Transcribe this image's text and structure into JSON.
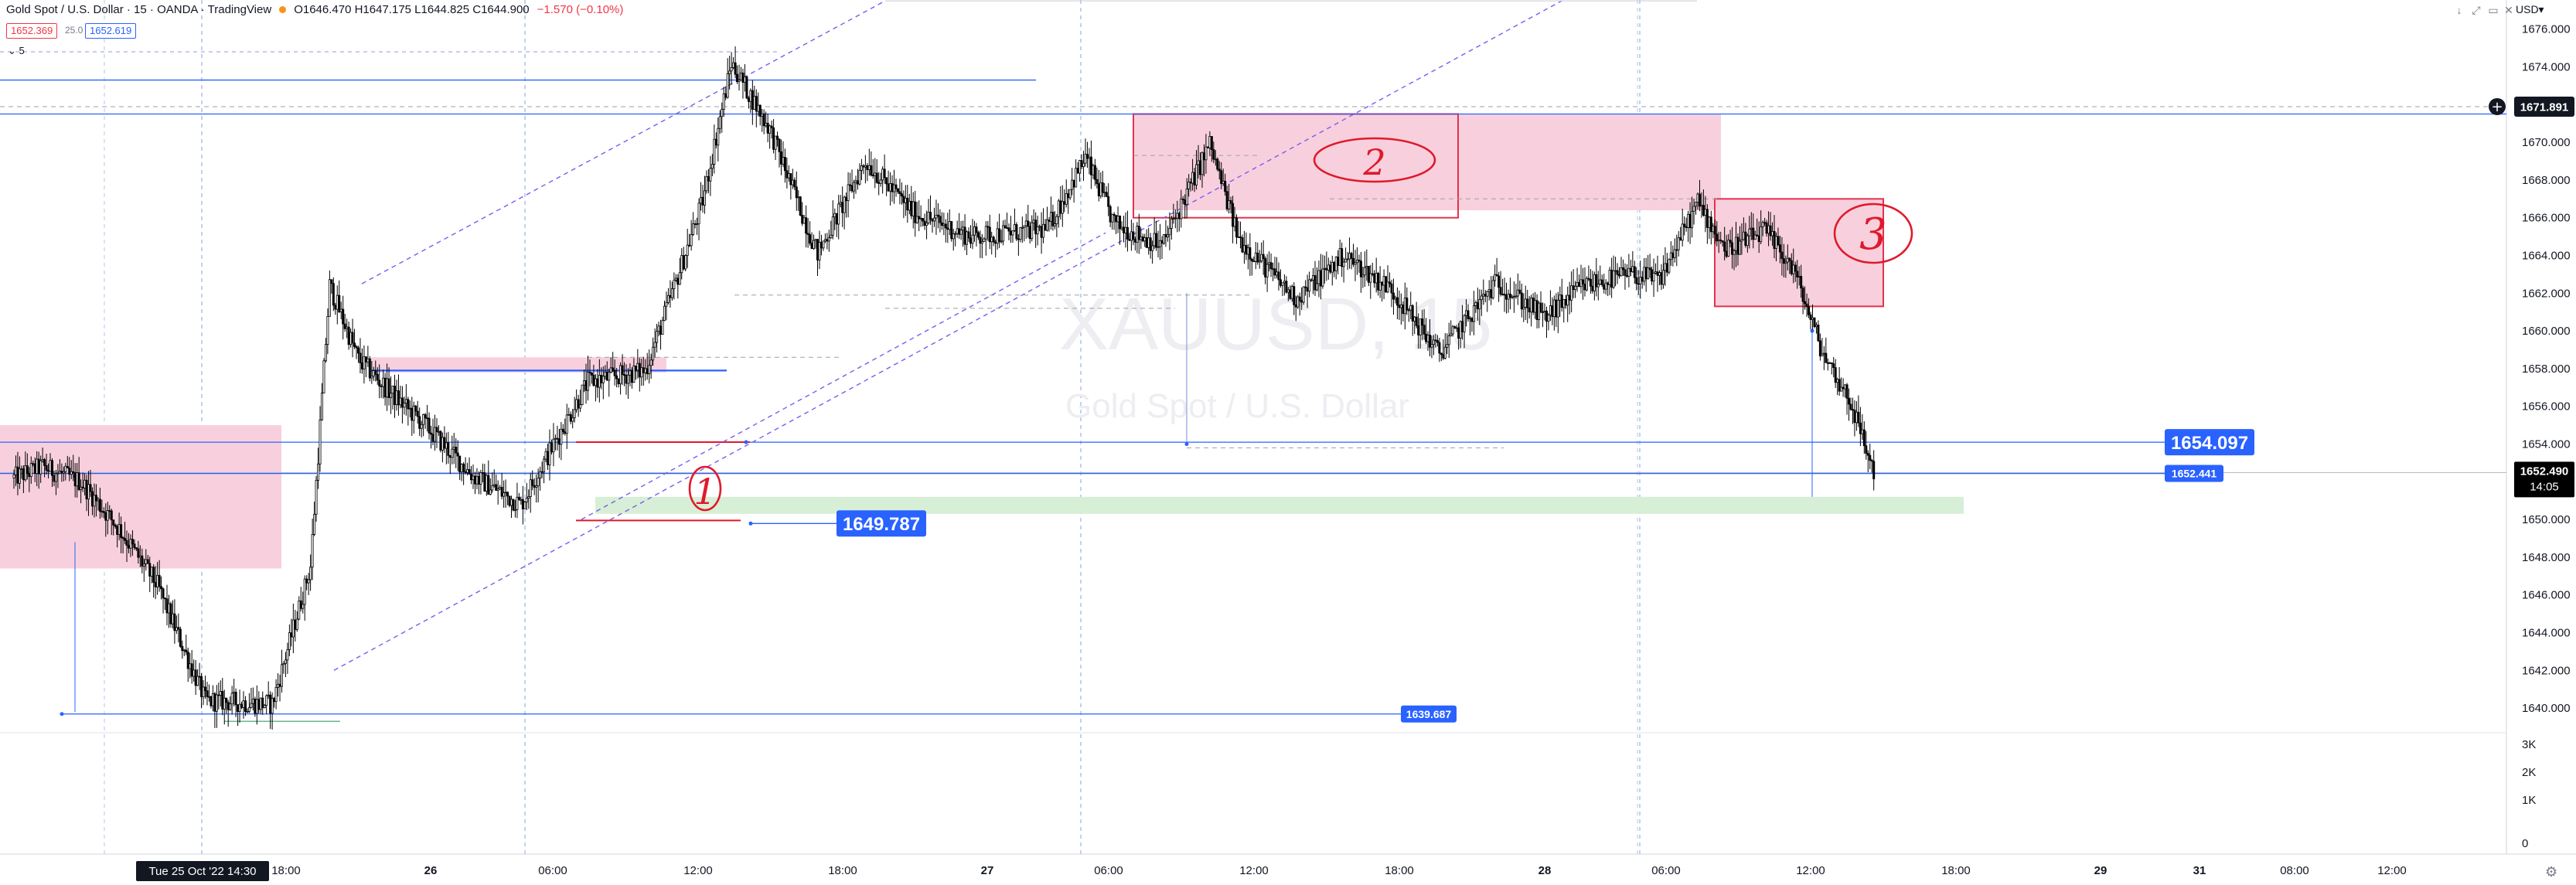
{
  "header": {
    "symbol": "Gold Spot / U.S. Dollar · 15 · OANDA · TradingView",
    "ohlc": "O1646.470 H1647.175 L1644.825 C1644.900",
    "change": "−1.570 (−0.10%)",
    "bid": "1652.369",
    "spread": "25.0",
    "ask": "1652.619",
    "volume_tag": "5"
  },
  "watermark": {
    "ticker": "XAUUSD, 15",
    "name": "Gold Spot / U.S. Dollar"
  },
  "window_controls": [
    "↓",
    "⤢",
    "▭",
    "✕"
  ],
  "currency": "USD▾",
  "gear_icon": "⚙",
  "colors": {
    "up": "#ffffff",
    "down": "#000000",
    "zone": "#f8d0dd",
    "zone_border": "#e3324f",
    "green_zone": "#d7efd6",
    "hline": "#2962ff",
    "purple": "#7b5cf0",
    "annot": "#e0192b",
    "axis_text": "#131722",
    "grid": "#e8e8e8"
  },
  "chart_data": {
    "type": "candlestick",
    "y_axis": {
      "min": 1638.0,
      "max": 1677.0,
      "step": 2,
      "tick_labels": [
        "1676.000",
        "1674.000",
        "1672.000",
        "1670.000",
        "1668.000",
        "1666.000",
        "1664.000",
        "1662.000",
        "1660.000",
        "1658.000",
        "1656.000",
        "1654.000",
        "1652.000",
        "1650.000",
        "1648.000",
        "1646.000",
        "1644.000",
        "1642.000",
        "1640.000"
      ]
    },
    "volume_axis": {
      "tick_labels": [
        "3K",
        "2K",
        "1K",
        "0"
      ]
    },
    "x_axis": {
      "tick_labels": [
        "18:00",
        "26",
        "06:00",
        "12:00",
        "18:00",
        "27",
        "06:00",
        "12:00",
        "18:00",
        "28",
        "06:00",
        "12:00",
        "18:00",
        "29",
        "31",
        "08:00",
        "12:00"
      ],
      "crosshair_label": "Tue 25 Oct '22   14:30"
    },
    "price_labels": [
      {
        "text": "1671.891",
        "price": 1671.891,
        "style": "plus"
      },
      {
        "text": "1652.490",
        "price": 1652.49,
        "style": "last",
        "sub": "14:05"
      },
      {
        "text": "1654.097",
        "price": 1654.097,
        "style": "big"
      },
      {
        "text": "1652.441",
        "price": 1652.441,
        "style": "small"
      },
      {
        "text": "1649.787",
        "price": 1649.787,
        "style": "big"
      },
      {
        "text": "1639.687",
        "price": 1639.687,
        "style": "small"
      }
    ],
    "annotations": [
      "1",
      "2",
      "3"
    ],
    "candles_source": "generated from smoothed price path",
    "anchors": [
      [
        0,
        1652.2
      ],
      [
        15,
        1652.8
      ],
      [
        35,
        1652.0
      ],
      [
        55,
        1649.5
      ],
      [
        75,
        1646.5
      ],
      [
        100,
        1640.4
      ],
      [
        135,
        1640.2
      ],
      [
        155,
        1647.5
      ],
      [
        165,
        1662.4
      ],
      [
        180,
        1658.5
      ],
      [
        200,
        1656.4
      ],
      [
        215,
        1655.0
      ],
      [
        240,
        1652.3
      ],
      [
        265,
        1650.8
      ],
      [
        300,
        1657.3
      ],
      [
        330,
        1657.9
      ],
      [
        345,
        1662.3
      ],
      [
        360,
        1666.9
      ],
      [
        375,
        1674.2
      ],
      [
        395,
        1670.7
      ],
      [
        420,
        1664.1
      ],
      [
        445,
        1669.0
      ],
      [
        470,
        1666.3
      ],
      [
        500,
        1665.0
      ],
      [
        540,
        1665.4
      ],
      [
        560,
        1669.2
      ],
      [
        575,
        1665.7
      ],
      [
        600,
        1664.5
      ],
      [
        625,
        1669.9
      ],
      [
        640,
        1664.9
      ],
      [
        670,
        1661.7
      ],
      [
        695,
        1664.0
      ],
      [
        720,
        1662.2
      ],
      [
        745,
        1658.8
      ],
      [
        775,
        1662.6
      ],
      [
        800,
        1660.7
      ],
      [
        820,
        1662.4
      ],
      [
        845,
        1663.0
      ],
      [
        860,
        1662.7
      ],
      [
        880,
        1666.8
      ],
      [
        895,
        1664.3
      ],
      [
        915,
        1665.3
      ],
      [
        930,
        1663.3
      ],
      [
        945,
        1658.9
      ],
      [
        960,
        1656.2
      ],
      [
        972,
        1652.5
      ]
    ]
  }
}
